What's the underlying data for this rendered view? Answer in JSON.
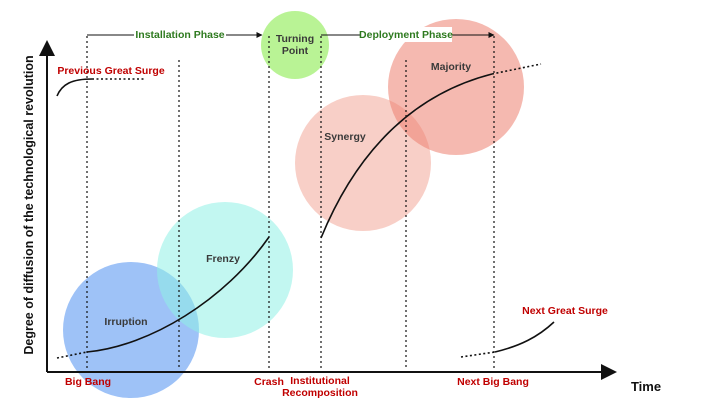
{
  "axes": {
    "y_label": "Degree of diffusion of the technological revolution",
    "x_label": "Time"
  },
  "phases": {
    "installation": "Installation Phase",
    "turning_point_line1": "Turning",
    "turning_point_line2": "Point",
    "deployment": "Deployment Phase"
  },
  "stages": {
    "irruption": "Irruption",
    "frenzy": "Frenzy",
    "synergy": "Synergy",
    "majority": "Majority"
  },
  "events": {
    "previous_surge": "Previous Great Surge",
    "next_surge": "Next Great Surge",
    "big_bang": "Big Bang",
    "crash": "Crash",
    "institutional_line1": "Institutional",
    "institutional_line2": "Recomposition",
    "next_big_bang": "Next Big Bang"
  },
  "colors": {
    "irruption": "#4f8ff0",
    "frenzy": "#8ff0e6",
    "synergy": "#f2a899",
    "majority": "#ec7f70",
    "turning_point": "#a8f07a",
    "event_text": "#c00000",
    "phase_text": "#2e7a1f",
    "stage_text": "#3a3a3a"
  }
}
